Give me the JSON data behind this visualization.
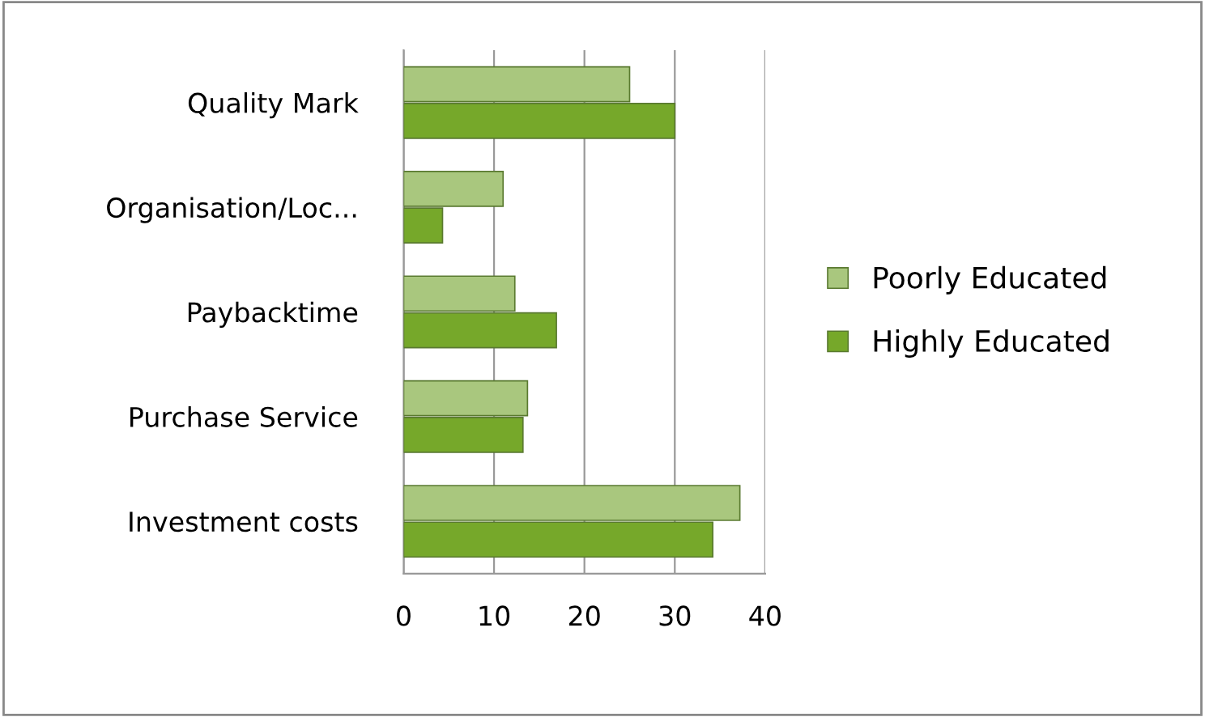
{
  "chart_data": {
    "type": "bar",
    "orientation": "horizontal",
    "categories": [
      "Quality Mark",
      "Organisation/Loc...",
      "Paybacktime",
      "Purchase Service",
      "Investment costs"
    ],
    "series": [
      {
        "name": "Poorly Educated",
        "color": "#a9c77e",
        "values": [
          25,
          11,
          12.3,
          13.7,
          37.2
        ]
      },
      {
        "name": "Highly Educated",
        "color": "#76a82a",
        "values": [
          30,
          4.3,
          16.9,
          13.2,
          34.2
        ]
      }
    ],
    "xlim": [
      0,
      40
    ],
    "xticks": [
      0,
      10,
      20,
      30,
      40
    ],
    "grid": "x",
    "legend": "right"
  }
}
